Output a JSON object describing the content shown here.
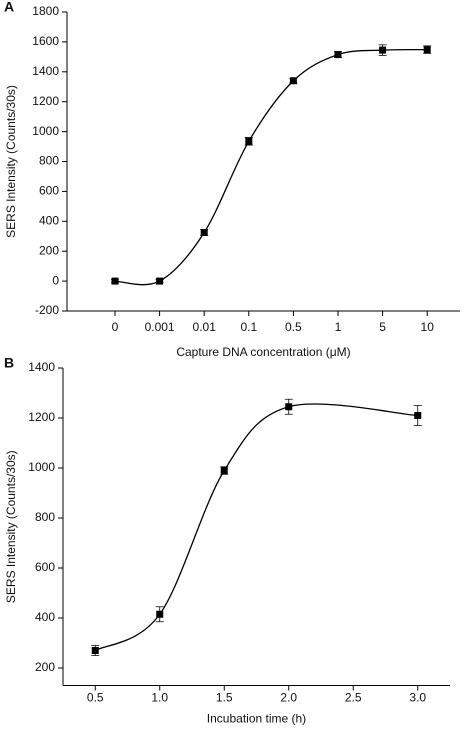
{
  "chart_data": [
    {
      "type": "scatter",
      "panel": "A",
      "x_label": "Capture DNA concentration (μM)",
      "y_label": "SERS Intensity (Counts/30s)",
      "categories": [
        "0",
        "0.001",
        "0.01",
        "0.1",
        "0.5",
        "1",
        "5",
        "10"
      ],
      "series": [
        {
          "color": "#000000",
          "values": [
            0,
            0,
            325,
            935,
            1340,
            1515,
            1545,
            1548
          ],
          "errors": [
            10,
            10,
            20,
            25,
            15,
            20,
            35,
            25
          ]
        }
      ],
      "ylim": [
        -200,
        1800
      ],
      "yticks": [
        -200,
        0,
        200,
        400,
        600,
        800,
        1000,
        1200,
        1400,
        1600,
        1800
      ]
    },
    {
      "type": "scatter",
      "panel": "B",
      "x_label": "Incubation time (h)",
      "y_label": "SERS Intensity (Counts/30s)",
      "x": [
        0.5,
        1,
        1.5,
        2,
        3
      ],
      "series": [
        {
          "color": "#000000",
          "values": [
            270,
            415,
            990,
            1245,
            1210
          ],
          "errors": [
            20,
            30,
            15,
            30,
            40
          ]
        }
      ],
      "xlim": [
        0.25,
        3.25
      ],
      "xticks": [
        {
          "value": 0.5,
          "label": "0.5"
        },
        {
          "value": 1,
          "label": "1.0"
        },
        {
          "value": 1.5,
          "label": "1.5"
        },
        {
          "value": 2,
          "label": "2.0"
        },
        {
          "value": 2.5,
          "label": "2.5"
        },
        {
          "value": 3,
          "label": "3.0"
        }
      ],
      "ylim": [
        130,
        1400
      ],
      "yticks": [
        200,
        400,
        600,
        800,
        1000,
        1200,
        1400
      ]
    }
  ]
}
